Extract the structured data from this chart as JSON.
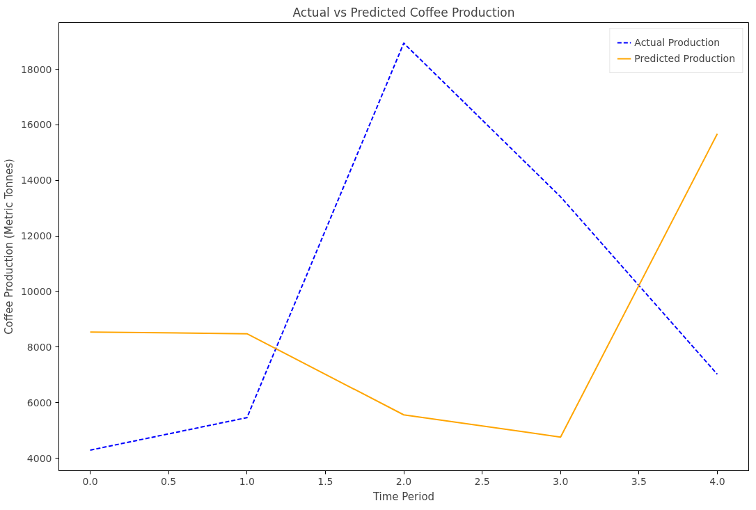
{
  "chart_data": {
    "type": "line",
    "title": "Actual vs Predicted Coffee Production",
    "xlabel": "Time Period",
    "ylabel": "Coffee Production (Metric Tonnes)",
    "x": [
      0,
      1,
      2,
      3,
      4
    ],
    "series": [
      {
        "name": "Actual Production",
        "color": "#0000ff",
        "values": [
          4290,
          5460,
          18940,
          13410,
          7020
        ],
        "line_style": "dashed"
      },
      {
        "name": "Predicted Production",
        "color": "#ffa500",
        "values": [
          8540,
          8480,
          5560,
          4760,
          15680
        ],
        "line_style": "solid"
      }
    ],
    "xlim": [
      -0.2,
      4.2
    ],
    "xticks": [
      {
        "value": 0,
        "label": "0.0"
      },
      {
        "value": 0.5,
        "label": "0.5"
      },
      {
        "value": 1,
        "label": "1.0"
      },
      {
        "value": 1.5,
        "label": "1.5"
      },
      {
        "value": 2,
        "label": "2.0"
      },
      {
        "value": 2.5,
        "label": "2.5"
      },
      {
        "value": 3,
        "label": "3.0"
      },
      {
        "value": 3.5,
        "label": "3.5"
      },
      {
        "value": 4,
        "label": "4.0"
      }
    ],
    "ylim": [
      3550,
      19680
    ],
    "yticks": [
      4000,
      6000,
      8000,
      10000,
      12000,
      14000,
      16000,
      18000
    ],
    "grid": false,
    "legend": "top right"
  }
}
